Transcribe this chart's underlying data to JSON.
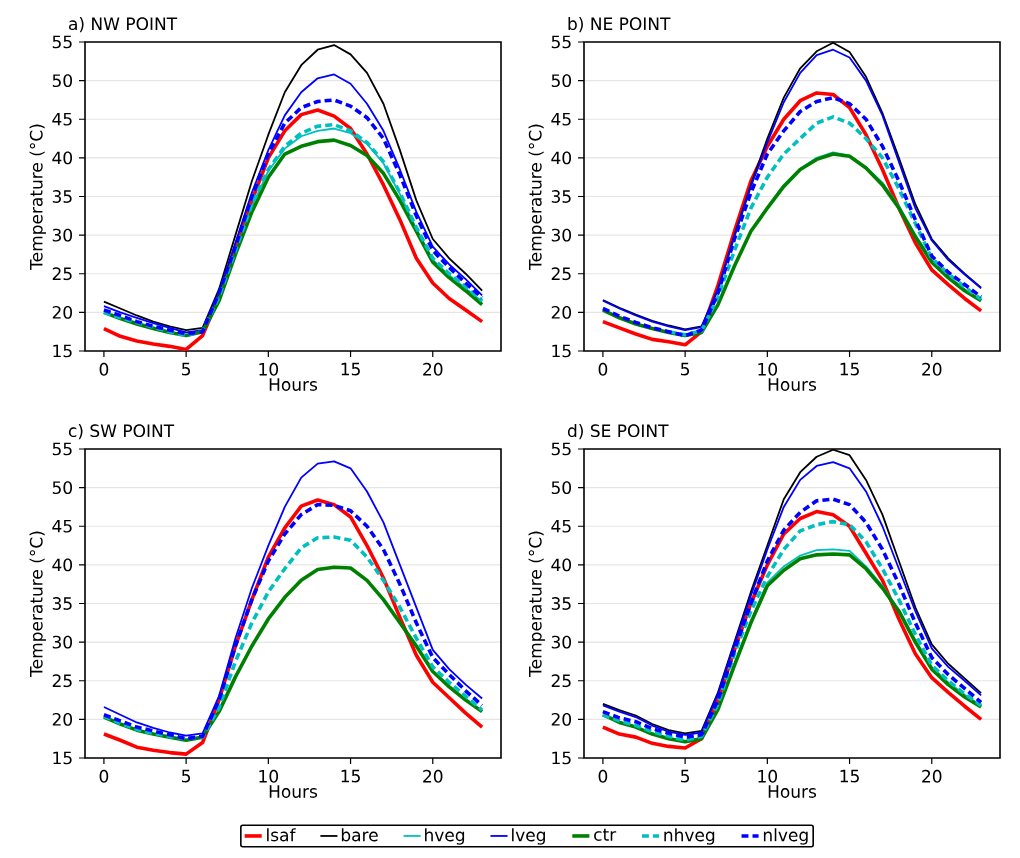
{
  "chart_data": [
    {
      "type": "line",
      "title": "a) NW POINT",
      "xlabel": "Hours",
      "ylabel": "Temperature (°C)",
      "x": [
        0,
        1,
        2,
        3,
        4,
        5,
        6,
        7,
        8,
        9,
        10,
        11,
        12,
        13,
        14,
        15,
        16,
        17,
        18,
        19,
        20,
        21,
        22,
        23
      ],
      "xlim": [
        -1.15,
        24.15
      ],
      "xticks": [
        0,
        5,
        10,
        15,
        20
      ],
      "ylim": [
        15,
        55
      ],
      "yticks": [
        15,
        20,
        25,
        30,
        35,
        40,
        45,
        50,
        55
      ],
      "grid": "y",
      "legend": false,
      "series": [
        {
          "color": "#ff0000",
          "line_style": "solid",
          "values": [
            17.9,
            16.9,
            16.3,
            15.9,
            15.6,
            15.2,
            17,
            22,
            28.5,
            34.5,
            40,
            43.5,
            45.6,
            46.2,
            45.4,
            43.8,
            40.5,
            36.5,
            32,
            27,
            23.8,
            21.8,
            20.3,
            18.8
          ]
        },
        {
          "color": "#000000",
          "line_style": "solid",
          "values": [
            21.4,
            20.5,
            19.6,
            18.8,
            18.2,
            17.7,
            18,
            23,
            30,
            37,
            43,
            48.5,
            52,
            54,
            54.6,
            53.4,
            51,
            47,
            41,
            34.5,
            29.5,
            27,
            25,
            22.8
          ]
        },
        {
          "color": "#00bfbf",
          "line_style": "solid",
          "values": [
            20,
            19.3,
            18.7,
            18.1,
            17.5,
            17,
            17.6,
            22,
            27.8,
            33.7,
            38.3,
            41.2,
            42.8,
            43.5,
            43.8,
            43.2,
            41.8,
            39.3,
            35.3,
            30.8,
            26.8,
            24.8,
            23.1,
            21.4
          ]
        },
        {
          "color": "#0000ff",
          "line_style": "solid",
          "values": [
            20.8,
            20,
            19.3,
            18.6,
            18,
            17.4,
            17.7,
            22.5,
            29,
            35.5,
            41,
            45.5,
            48.5,
            50.3,
            50.8,
            49.6,
            47,
            43.5,
            38.5,
            33,
            28.5,
            26.2,
            24.3,
            22.2
          ]
        },
        {
          "color": "#008000",
          "line_style": "solid",
          "values": [
            20,
            19.2,
            18.5,
            17.9,
            17.4,
            17,
            17.5,
            21.5,
            27.5,
            33,
            37.5,
            40.5,
            41.5,
            42.1,
            42.3,
            41.6,
            40.3,
            38,
            34.5,
            30.5,
            26.5,
            24.5,
            22.8,
            21
          ]
        },
        {
          "color": "#00bfbf",
          "line_style": "dashed",
          "values": [
            20,
            19.3,
            18.7,
            18.1,
            17.5,
            17,
            17.6,
            22,
            28,
            34,
            38.5,
            41.5,
            43.2,
            44.1,
            44.3,
            43.5,
            42,
            39.5,
            35.5,
            31,
            27,
            25,
            23.3,
            21.5
          ]
        },
        {
          "color": "#0000ff",
          "line_style": "dashed",
          "values": [
            20.3,
            19.6,
            18.8,
            18.2,
            17.7,
            17.2,
            17.5,
            22.5,
            28.5,
            35,
            40.5,
            44.5,
            46.5,
            47.3,
            47.5,
            46.7,
            45.2,
            42.5,
            37.8,
            32.5,
            28,
            25.8,
            23.8,
            21.9
          ]
        }
      ]
    },
    {
      "type": "line",
      "title": "b) NE POINT",
      "xlabel": "Hours",
      "ylabel": "Temperature (°C)",
      "x": [
        0,
        1,
        2,
        3,
        4,
        5,
        6,
        7,
        8,
        9,
        10,
        11,
        12,
        13,
        14,
        15,
        16,
        17,
        18,
        19,
        20,
        21,
        22,
        23
      ],
      "xlim": [
        -1.15,
        24.15
      ],
      "xticks": [
        0,
        5,
        10,
        15,
        20
      ],
      "ylim": [
        15,
        55
      ],
      "yticks": [
        15,
        20,
        25,
        30,
        35,
        40,
        45,
        50,
        55
      ],
      "grid": "y",
      "legend": false,
      "series": [
        {
          "color": "#ff0000",
          "line_style": "solid",
          "values": [
            18.8,
            18,
            17.2,
            16.5,
            16.2,
            15.8,
            17.5,
            23.5,
            30.5,
            37,
            41.5,
            45,
            47.4,
            48.4,
            48.2,
            46.5,
            43,
            38.5,
            33.5,
            29,
            25.5,
            23.6,
            21.8,
            20.2
          ]
        },
        {
          "color": "#000000",
          "line_style": "solid",
          "values": [
            21.6,
            20.6,
            19.7,
            18.9,
            18.3,
            17.8,
            18.2,
            23,
            30,
            36.5,
            42.5,
            47.8,
            51.6,
            53.8,
            54.9,
            53.7,
            50.5,
            45.8,
            40,
            34,
            29.5,
            27,
            25,
            23.2
          ]
        },
        {
          "color": "#00bfbf",
          "line_style": "solid",
          "values": [
            null,
            null,
            null,
            17.9,
            17.4,
            17,
            17.4,
            21,
            26,
            30.5,
            33.6,
            36.5,
            38.6,
            40,
            40.7,
            40.3,
            38.8,
            36.8,
            33.8,
            30,
            26.8,
            24.7,
            23,
            21.5
          ]
        },
        {
          "color": "#0000ff",
          "line_style": "solid",
          "values": [
            21.5,
            20.5,
            19.6,
            18.8,
            18.2,
            17.7,
            18.1,
            23,
            29.8,
            36.3,
            42,
            47.2,
            51,
            53.3,
            54,
            53,
            50,
            45.5,
            39.5,
            33.5,
            29.3,
            26.8,
            24.9,
            23.1
          ]
        },
        {
          "color": "#008000",
          "line_style": "solid",
          "values": [
            20.3,
            19.3,
            18.5,
            17.9,
            17.4,
            17,
            17.4,
            21,
            26,
            30.5,
            33.5,
            36.3,
            38.5,
            39.8,
            40.5,
            40.2,
            38.7,
            36.5,
            33.5,
            29.8,
            26.5,
            24.5,
            22.8,
            21.5
          ]
        },
        {
          "color": "#00bfbf",
          "line_style": "dashed",
          "values": [
            null,
            null,
            null,
            null,
            17.5,
            17.1,
            17.6,
            22,
            28,
            33.5,
            37.5,
            40.5,
            42.5,
            44.5,
            45.3,
            44.5,
            42.5,
            40,
            36,
            31.5,
            27,
            25,
            23.3,
            21.7
          ]
        },
        {
          "color": "#0000ff",
          "line_style": "dashed",
          "values": [
            20.5,
            19.5,
            18.7,
            18,
            17.5,
            17,
            17.7,
            22.5,
            29.5,
            35.5,
            40.5,
            43.5,
            46,
            47.3,
            47.8,
            47,
            45,
            41.5,
            37,
            32,
            27.3,
            25.2,
            23.6,
            22
          ]
        }
      ]
    },
    {
      "type": "line",
      "title": "c) SW POINT",
      "xlabel": "Hours",
      "ylabel": "Temperature (°C)",
      "x": [
        0,
        1,
        2,
        3,
        4,
        5,
        6,
        7,
        8,
        9,
        10,
        11,
        12,
        13,
        14,
        15,
        16,
        17,
        18,
        19,
        20,
        21,
        22,
        23
      ],
      "xlim": [
        -1.15,
        24.15
      ],
      "xticks": [
        0,
        5,
        10,
        15,
        20
      ],
      "ylim": [
        15,
        55
      ],
      "yticks": [
        15,
        20,
        25,
        30,
        35,
        40,
        45,
        50,
        55
      ],
      "grid": "y",
      "legend": false,
      "series": [
        {
          "color": "#ff0000",
          "line_style": "solid",
          "values": [
            18.1,
            17.3,
            16.4,
            16,
            15.7,
            15.5,
            17,
            22.5,
            29.5,
            35.5,
            41,
            44.8,
            47.6,
            48.4,
            47.8,
            46.2,
            42.5,
            38.3,
            33.2,
            28.3,
            24.8,
            22.8,
            20.8,
            19
          ]
        },
        {
          "color": "#0000ff",
          "line_style": "solid",
          "values": [
            21.6,
            20.6,
            19.6,
            18.9,
            18.3,
            17.9,
            18.2,
            23,
            30.5,
            37,
            42.5,
            47.5,
            51.3,
            53.1,
            53.4,
            52.5,
            49.5,
            45.5,
            40,
            34.5,
            29,
            26.5,
            24.5,
            22.7
          ]
        },
        {
          "color": "#008000",
          "line_style": "solid",
          "values": [
            20.3,
            19.4,
            18.6,
            18.1,
            17.7,
            17.3,
            17.7,
            21,
            25.5,
            29.5,
            33,
            35.8,
            38,
            39.4,
            39.7,
            39.6,
            38,
            35.5,
            32.5,
            29.5,
            26.2,
            24.2,
            22.5,
            21
          ]
        },
        {
          "color": "#00bfbf",
          "line_style": "dashed",
          "values": [
            20.4,
            19.5,
            18.7,
            18.2,
            17.8,
            17.5,
            17.7,
            21.5,
            27.5,
            32.5,
            36.5,
            39.5,
            42.2,
            43.5,
            43.6,
            43.2,
            41,
            38,
            34.5,
            30.5,
            26.8,
            24.8,
            23,
            21.2
          ]
        },
        {
          "color": "#0000ff",
          "line_style": "dashed",
          "values": [
            20.6,
            19.8,
            19,
            18.5,
            18,
            17.5,
            17.8,
            22.5,
            29.5,
            35.5,
            40.5,
            44,
            46.5,
            47.8,
            47.7,
            47,
            45,
            42,
            37.5,
            32.5,
            28,
            25.8,
            23.7,
            21.8
          ]
        }
      ]
    },
    {
      "type": "line",
      "title": "d) SE POINT",
      "xlabel": "Hours",
      "ylabel": "Temperature (°C)",
      "x": [
        0,
        1,
        2,
        3,
        4,
        5,
        6,
        7,
        8,
        9,
        10,
        11,
        12,
        13,
        14,
        15,
        16,
        17,
        18,
        19,
        20,
        21,
        22,
        23
      ],
      "xlim": [
        -1.15,
        24.15
      ],
      "xticks": [
        0,
        5,
        10,
        15,
        20
      ],
      "ylim": [
        15,
        55
      ],
      "yticks": [
        15,
        20,
        25,
        30,
        35,
        40,
        45,
        50,
        55
      ],
      "grid": "y",
      "legend": "bottom",
      "series": [
        {
          "name": "lsaf",
          "color": "#ff0000",
          "line_style": "solid",
          "values": [
            19,
            18.1,
            17.7,
            16.9,
            16.5,
            16.3,
            17.5,
            22.5,
            29,
            35,
            40,
            44,
            46,
            46.9,
            46.5,
            45,
            41.5,
            38,
            33,
            28.5,
            25.4,
            23.5,
            21.7,
            20
          ]
        },
        {
          "name": "bare",
          "color": "#000000",
          "line_style": "solid",
          "values": [
            22,
            21.2,
            20.5,
            19.4,
            18.6,
            18.2,
            18.5,
            23.5,
            30,
            36.5,
            42.5,
            48.5,
            52,
            54,
            54.9,
            54.2,
            51,
            46.5,
            40.5,
            34.5,
            29.7,
            27.2,
            25.3,
            23.4
          ]
        },
        {
          "name": "hveg",
          "color": "#00bfbf",
          "line_style": "solid",
          "values": [
            20.6,
            19.7,
            19,
            18.2,
            17.6,
            17.2,
            17.6,
            21.5,
            27.2,
            32.7,
            37.7,
            39.8,
            41.2,
            41.9,
            42,
            41.8,
            39.8,
            37.3,
            34.2,
            30.2,
            26.8,
            24.8,
            23.2,
            21.8
          ]
        },
        {
          "name": "lveg",
          "color": "#0000ff",
          "line_style": "solid",
          "values": [
            21.8,
            21,
            20.3,
            19.2,
            18.4,
            18,
            18.3,
            23.3,
            29.8,
            36,
            42,
            47.5,
            51,
            52.8,
            53.3,
            52.5,
            49.5,
            45,
            39.5,
            34,
            29.2,
            26.8,
            25,
            23.1
          ]
        },
        {
          "name": "ctr",
          "color": "#008000",
          "line_style": "solid",
          "values": [
            20.6,
            19.6,
            19,
            18.1,
            17.5,
            17.1,
            17.5,
            21.3,
            27,
            32.5,
            37.3,
            39.3,
            40.8,
            41.3,
            41.4,
            41.3,
            39.5,
            37,
            34,
            30,
            26.5,
            24.5,
            22.9,
            21.6
          ]
        },
        {
          "name": "nhveg",
          "color": "#00bfbf",
          "line_style": "dashed",
          "values": [
            20.6,
            19.8,
            19.2,
            18.4,
            17.8,
            17.3,
            17.8,
            22,
            28.5,
            34,
            38.5,
            42,
            44.4,
            45.2,
            45.6,
            45.2,
            43,
            39.5,
            35.5,
            31,
            27,
            25,
            23.3,
            21.8
          ]
        },
        {
          "name": "nlveg",
          "color": "#0000ff",
          "line_style": "dashed",
          "values": [
            21,
            20.2,
            19.7,
            18.8,
            18.2,
            17.7,
            18,
            22.5,
            29,
            35,
            40.5,
            44.5,
            46.8,
            48.3,
            48.5,
            47.8,
            45.5,
            42,
            37.5,
            32.5,
            28,
            25.8,
            24,
            22.2
          ]
        }
      ]
    }
  ]
}
